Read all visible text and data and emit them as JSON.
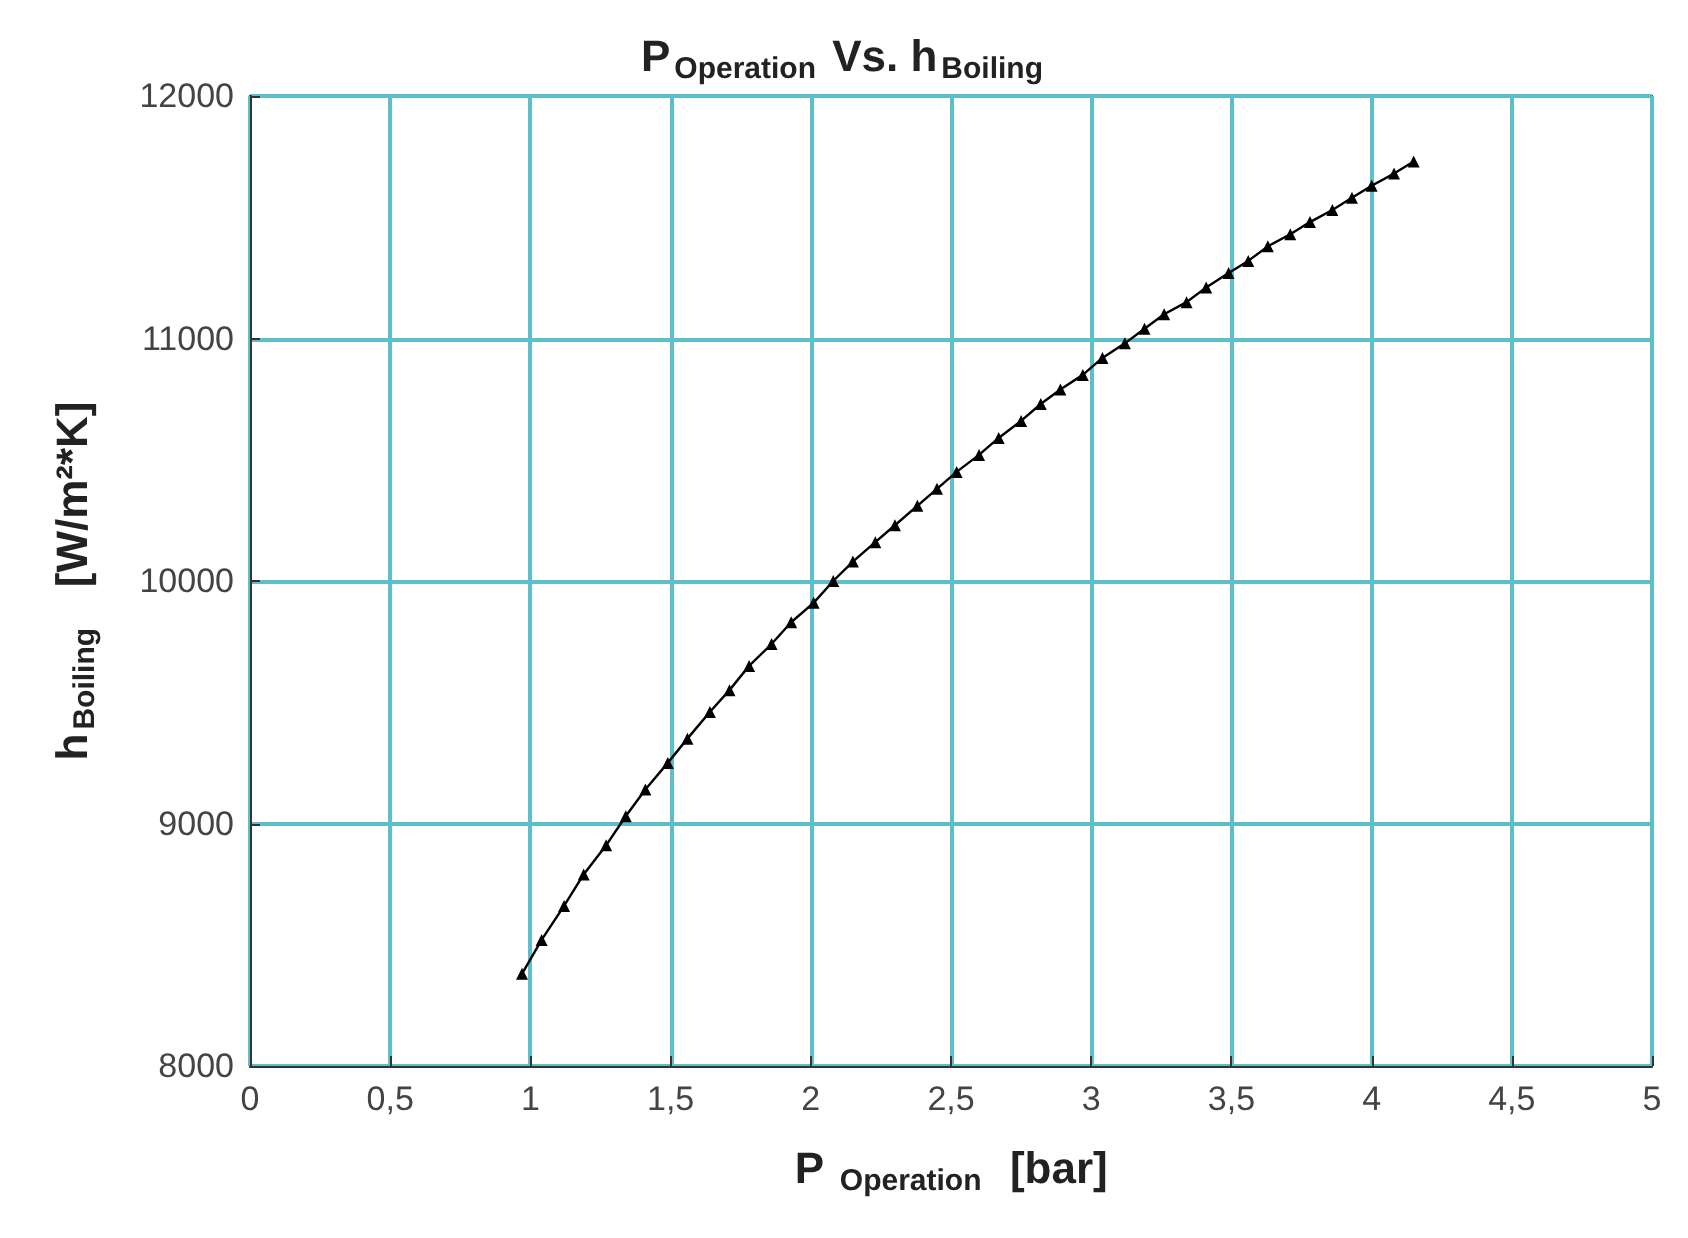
{
  "chart_data": {
    "type": "line",
    "title": "P$_{Operation}$ Vs. h$_{Boiling}$",
    "xlabel": "P $_{Operation}$  [bar]",
    "ylabel": "h$_{Boiling}$   [W/m²*K]",
    "x": [
      0.97,
      1.04,
      1.12,
      1.19,
      1.27,
      1.34,
      1.41,
      1.49,
      1.56,
      1.64,
      1.71,
      1.78,
      1.86,
      1.93,
      2.01,
      2.08,
      2.15,
      2.23,
      2.3,
      2.38,
      2.45,
      2.52,
      2.6,
      2.67,
      2.75,
      2.82,
      2.89,
      2.97,
      3.04,
      3.12,
      3.19,
      3.26,
      3.34,
      3.41,
      3.49,
      3.56,
      3.63,
      3.71,
      3.78,
      3.86,
      3.93,
      4.0,
      4.08,
      4.15
    ],
    "series": [
      {
        "color": "#000000",
        "values": [
          8380,
          8520,
          8660,
          8790,
          8910,
          9030,
          9140,
          9250,
          9350,
          9460,
          9550,
          9650,
          9740,
          9830,
          9910,
          10000,
          10080,
          10160,
          10230,
          10310,
          10380,
          10450,
          10520,
          10590,
          10660,
          10730,
          10790,
          10850,
          10920,
          10980,
          11040,
          11100,
          11150,
          11210,
          11270,
          11320,
          11380,
          11430,
          11480,
          11530,
          11580,
          11630,
          11680,
          11730
        ]
      }
    ],
    "xlim": [
      0,
      5
    ],
    "xticks": [
      0,
      {
        "value": 0.5,
        "label": "0,5"
      },
      1,
      {
        "value": 1.5,
        "label": "1,5"
      },
      2,
      {
        "value": 2.5,
        "label": "2,5"
      },
      3,
      {
        "value": 3.5,
        "label": "3,5"
      },
      4,
      {
        "value": 4.5,
        "label": "4,5"
      },
      5
    ],
    "ylim": [
      8000,
      12000
    ],
    "yticks": [
      8000,
      9000,
      10000,
      11000,
      12000
    ],
    "grid": true,
    "marker": "triangle",
    "line_style": "solid"
  }
}
